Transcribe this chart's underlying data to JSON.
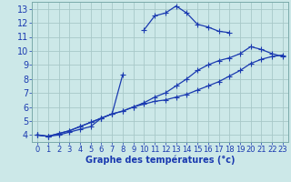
{
  "xlabel": "Graphe des températures (°c)",
  "bg_color": "#cce8e8",
  "grid_color": "#a8c8c8",
  "line_color": "#1a3ab0",
  "x_values": [
    0,
    1,
    2,
    3,
    4,
    5,
    6,
    7,
    8,
    9,
    10,
    11,
    12,
    13,
    14,
    15,
    16,
    17,
    18,
    19,
    20,
    21,
    22,
    23
  ],
  "line1": [
    4.0,
    3.9,
    4.0,
    4.2,
    4.4,
    4.6,
    5.2,
    5.5,
    8.3,
    null,
    11.5,
    12.5,
    12.7,
    13.2,
    12.7,
    11.9,
    11.7,
    11.4,
    11.3,
    null,
    null,
    null,
    null,
    null
  ],
  "line2": [
    4.0,
    3.9,
    4.1,
    4.3,
    4.6,
    4.9,
    5.2,
    5.5,
    5.7,
    6.0,
    6.3,
    6.7,
    7.0,
    7.5,
    8.0,
    8.6,
    9.0,
    9.3,
    9.5,
    9.8,
    10.3,
    10.1,
    9.8,
    9.6
  ],
  "line3": [
    4.0,
    3.9,
    4.1,
    4.3,
    4.6,
    4.9,
    5.2,
    5.5,
    5.7,
    6.0,
    6.2,
    6.4,
    6.5,
    6.7,
    6.9,
    7.2,
    7.5,
    7.8,
    8.2,
    8.6,
    9.1,
    9.4,
    9.6,
    9.7
  ],
  "ylim": [
    3.5,
    13.5
  ],
  "xlim": [
    -0.5,
    23.5
  ],
  "yticks": [
    4,
    5,
    6,
    7,
    8,
    9,
    10,
    11,
    12,
    13
  ],
  "xticks": [
    0,
    1,
    2,
    3,
    4,
    5,
    6,
    7,
    8,
    9,
    10,
    11,
    12,
    13,
    14,
    15,
    16,
    17,
    18,
    19,
    20,
    21,
    22,
    23
  ],
  "ytick_fontsize": 7,
  "xtick_fontsize": 6,
  "xlabel_fontsize": 7,
  "marker_size": 2.0,
  "line_width": 0.9
}
